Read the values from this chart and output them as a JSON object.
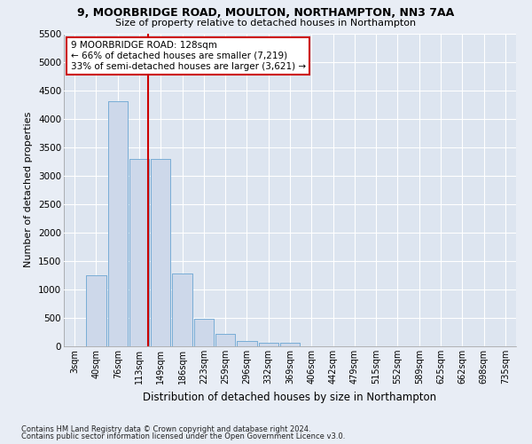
{
  "title_line1": "9, MOORBRIDGE ROAD, MOULTON, NORTHAMPTON, NN3 7AA",
  "title_line2": "Size of property relative to detached houses in Northampton",
  "xlabel": "Distribution of detached houses by size in Northampton",
  "ylabel": "Number of detached properties",
  "footnote1": "Contains HM Land Registry data © Crown copyright and database right 2024.",
  "footnote2": "Contains public sector information licensed under the Open Government Licence v3.0.",
  "bar_color": "#cdd8ea",
  "bar_edgecolor": "#7aaed6",
  "background_color": "#dde5f0",
  "fig_background_color": "#e8edf5",
  "grid_color": "#ffffff",
  "vline_color": "#cc0000",
  "annotation_text": "9 MOORBRIDGE ROAD: 128sqm\n← 66% of detached houses are smaller (7,219)\n33% of semi-detached houses are larger (3,621) →",
  "annotation_box_edgecolor": "#cc0000",
  "categories": [
    "3sqm",
    "40sqm",
    "76sqm",
    "113sqm",
    "149sqm",
    "186sqm",
    "223sqm",
    "259sqm",
    "296sqm",
    "332sqm",
    "369sqm",
    "406sqm",
    "442sqm",
    "479sqm",
    "515sqm",
    "552sqm",
    "589sqm",
    "625sqm",
    "662sqm",
    "698sqm",
    "735sqm"
  ],
  "values": [
    0,
    1255,
    4300,
    3300,
    3300,
    1280,
    490,
    220,
    90,
    70,
    60,
    0,
    0,
    0,
    0,
    0,
    0,
    0,
    0,
    0,
    0
  ],
  "ylim": [
    0,
    5500
  ],
  "yticks": [
    0,
    500,
    1000,
    1500,
    2000,
    2500,
    3000,
    3500,
    4000,
    4500,
    5000,
    5500
  ],
  "vline_x_index": 3.42
}
